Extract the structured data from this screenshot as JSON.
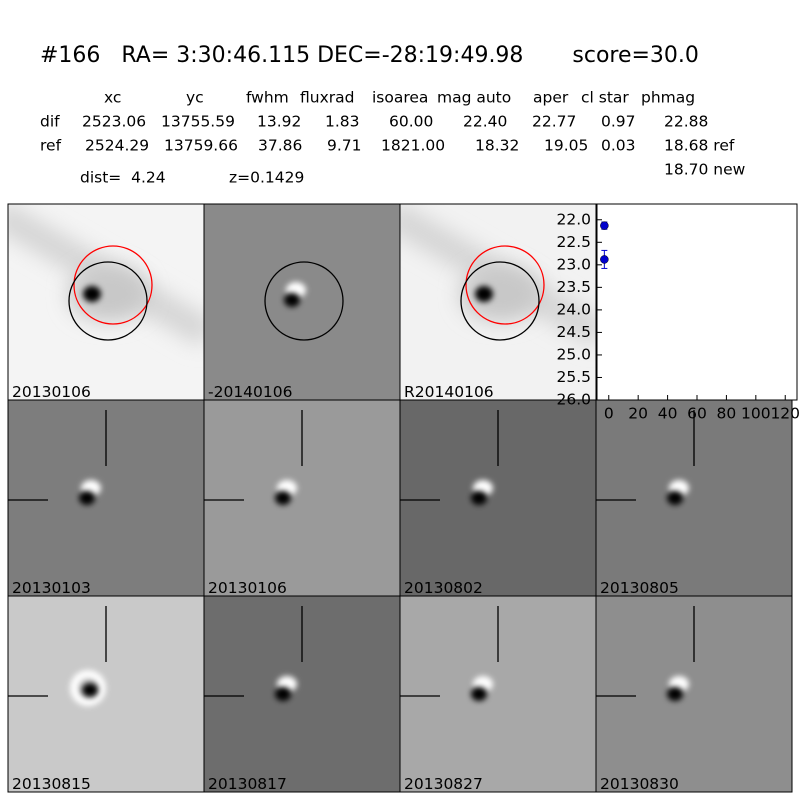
{
  "header": {
    "title": "#166   RA= 3:30:46.115 DEC=-28:19:49.98       score=30.0"
  },
  "stats": {
    "columns": [
      "xc",
      "yc",
      "fwhm",
      "fluxrad",
      "isoarea",
      "mag auto",
      "aper",
      "cl star",
      "phmag"
    ],
    "rows": [
      [
        "dif",
        "2523.06",
        "13755.59",
        "13.92",
        "1.83",
        "60.00",
        "22.40",
        "22.77",
        "0.97",
        "22.88"
      ],
      [
        "ref",
        "2524.29",
        "13759.66",
        "37.86",
        "9.71",
        "1821.00",
        "18.32",
        "19.05",
        "0.03",
        "18.68 ref"
      ]
    ],
    "extra": "18.70 new",
    "dist": "dist=  4.24",
    "z": "z=0.1429"
  },
  "panels": [
    {
      "label": "20130106",
      "label_color": "#000000"
    },
    {
      "label": "-20140106",
      "label_color": "#000000"
    },
    {
      "label": "R20140106",
      "label_color": "#000000"
    },
    {
      "label": "20130103",
      "label_color": "#000000"
    },
    {
      "label": "20130106",
      "label_color": "#ff0000"
    },
    {
      "label": "20130802",
      "label_color": "#000000"
    },
    {
      "label": "20130805",
      "label_color": "#000000"
    },
    {
      "label": "20130815",
      "label_color": "#000000"
    },
    {
      "label": "20130817",
      "label_color": "#000000"
    },
    {
      "label": "20130827",
      "label_color": "#000000"
    },
    {
      "label": "20130830",
      "label_color": "#000000"
    }
  ],
  "chart_data": {
    "type": "scatter",
    "x": [
      -3,
      -3
    ],
    "values": [
      22.13,
      22.88
    ],
    "errors": [
      0.08,
      0.2
    ],
    "color": "#0000cc",
    "xlim": [
      -8,
      128
    ],
    "ylim": [
      26,
      21.65
    ],
    "xticks": [
      0,
      20,
      40,
      60,
      80,
      100,
      120
    ],
    "yticks": [
      {
        "value": 22,
        "label": "22.0"
      },
      22.5,
      {
        "value": 23,
        "label": "23.0"
      },
      23.5,
      {
        "value": 24,
        "label": "24.0"
      },
      24.5,
      {
        "value": 25,
        "label": "25.0"
      },
      25.5,
      {
        "value": 26,
        "label": "26.0"
      }
    ]
  }
}
